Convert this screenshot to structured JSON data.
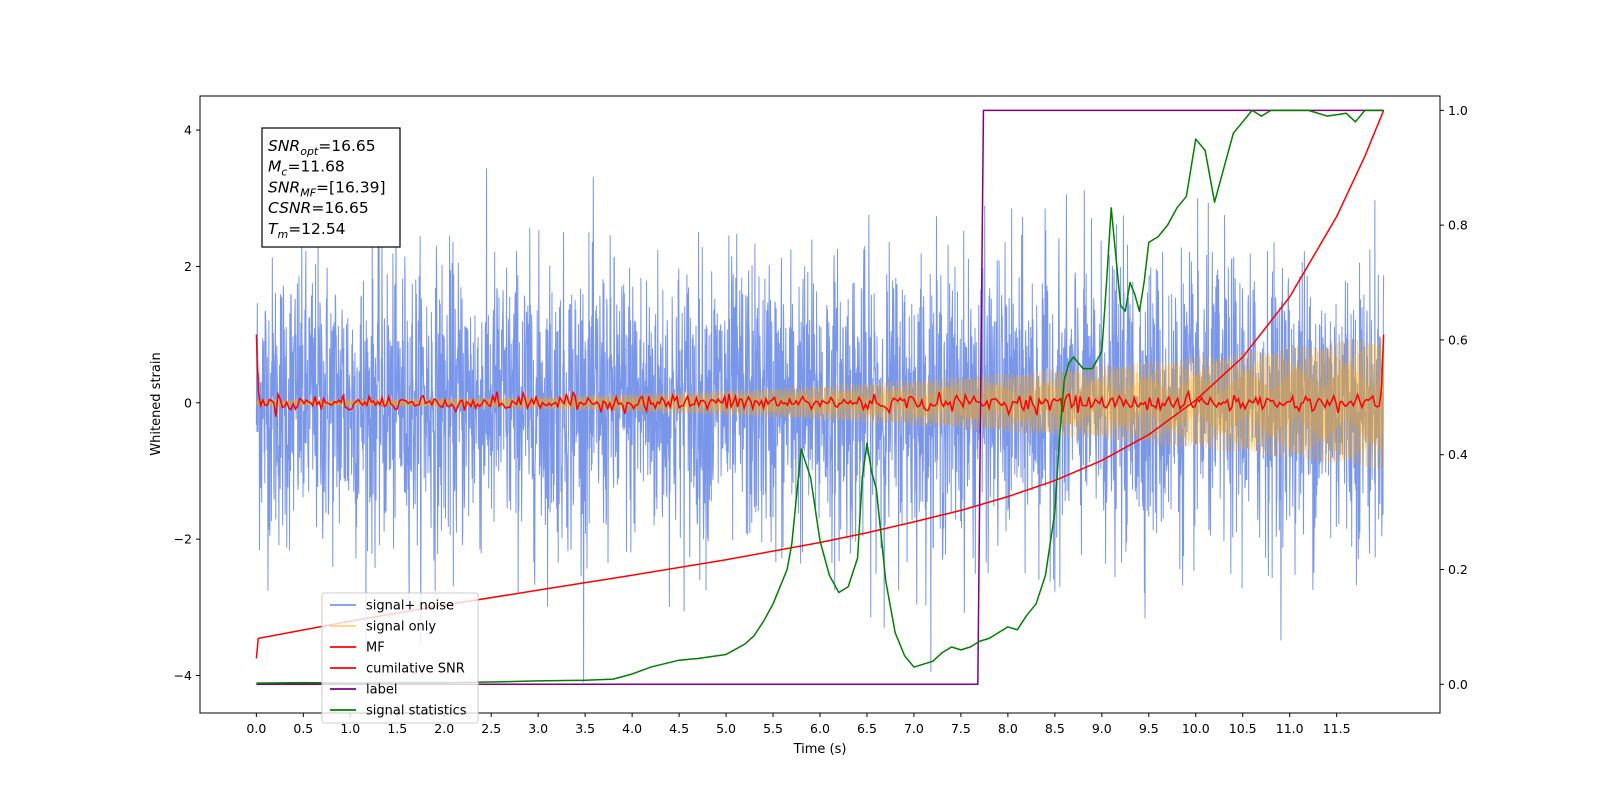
{
  "chart_data": {
    "type": "line",
    "xlabel": "Time (s)",
    "ylabel": "Whitened strain",
    "xlim": [
      -0.6,
      12.6
    ],
    "ylim_left": [
      -4.55,
      4.5
    ],
    "ylim_right": [
      -0.05,
      1.025
    ],
    "x_ticks": [
      0.0,
      0.5,
      1.0,
      1.5,
      2.0,
      2.5,
      3.0,
      3.5,
      4.0,
      4.5,
      5.0,
      5.5,
      6.0,
      6.5,
      7.0,
      7.5,
      8.0,
      8.5,
      9.0,
      9.5,
      10.0,
      10.5,
      11.0,
      11.5
    ],
    "x_tick_labels": [
      "0.0",
      "0.5",
      "1.0",
      "1.5",
      "2.0",
      "2.5",
      "3.0",
      "3.5",
      "4.0",
      "4.5",
      "5.0",
      "5.5",
      "6.0",
      "6.5",
      "7.0",
      "7.5",
      "8.0",
      "8.5",
      "9.0",
      "9.5",
      "10.0",
      "10.5",
      "11.0",
      "11.5"
    ],
    "y_left_ticks": [
      -4,
      -2,
      0,
      2,
      4
    ],
    "y_left_tick_labels": [
      "−4",
      "−2",
      "0",
      "2",
      "4"
    ],
    "y_right_ticks": [
      0.0,
      0.2,
      0.4,
      0.6,
      0.8,
      1.0
    ],
    "y_right_tick_labels": [
      "0.0",
      "0.2",
      "0.4",
      "0.6",
      "0.8",
      "1.0"
    ],
    "grid": false,
    "legend_position": "lower-left",
    "annotation": {
      "lines": [
        {
          "sym": "SNR",
          "sub": "opt",
          "rest": "=16.65"
        },
        {
          "sym": "M",
          "sub": "c",
          "rest": "=11.68"
        },
        {
          "sym": "SNR",
          "sub": "MF",
          "rest": "=[16.39]"
        },
        {
          "sym": "CSNR",
          "sub": "",
          "rest": "=16.65"
        },
        {
          "sym": "T",
          "sub": "m",
          "rest": "=12.54"
        }
      ]
    },
    "series": [
      {
        "name": "signal+ noise",
        "color": "#4169e1",
        "axis": "left",
        "kind": "noise",
        "t_range": [
          0.0,
          12.0
        ],
        "std": 1.05,
        "max_abs": 4.1
      },
      {
        "name": "signal only",
        "color": "#ffa500",
        "axis": "left",
        "kind": "chirp",
        "t_range": [
          0.0,
          12.0
        ],
        "start_amplitude": 0.05,
        "end_amplitude": 0.98
      },
      {
        "name": "MF",
        "color": "#ff0000",
        "axis": "left",
        "kind": "mf",
        "t_range": [
          0.0,
          12.0
        ],
        "start_value": 1.0,
        "end_value": 1.0,
        "baseline": 0.0,
        "fluctuation": 0.06
      },
      {
        "name": "cumilative SNR",
        "color": "#ff0000",
        "axis": "right",
        "x": [
          0.0,
          0.02,
          1.0,
          2.0,
          3.0,
          4.0,
          5.0,
          6.0,
          6.5,
          7.0,
          7.5,
          8.0,
          8.5,
          9.0,
          9.5,
          10.0,
          10.5,
          11.0,
          11.5,
          11.8,
          12.0
        ],
        "y": [
          0.045,
          0.08,
          0.11,
          0.138,
          0.164,
          0.19,
          0.217,
          0.247,
          0.264,
          0.283,
          0.303,
          0.327,
          0.355,
          0.39,
          0.435,
          0.495,
          0.57,
          0.675,
          0.815,
          0.92,
          1.0
        ]
      },
      {
        "name": "label",
        "color": "#800080",
        "axis": "right",
        "x": [
          0.0,
          7.68,
          7.74,
          12.0
        ],
        "y": [
          0.0,
          0.0,
          1.0,
          1.0
        ]
      },
      {
        "name": "signal statistics",
        "color": "#008000",
        "axis": "right",
        "x": [
          0.0,
          0.5,
          1.0,
          1.5,
          2.0,
          2.5,
          3.0,
          3.5,
          3.8,
          4.0,
          4.2,
          4.5,
          4.7,
          5.0,
          5.2,
          5.3,
          5.4,
          5.5,
          5.55,
          5.65,
          5.7,
          5.8,
          5.9,
          6.0,
          6.1,
          6.2,
          6.3,
          6.4,
          6.45,
          6.5,
          6.55,
          6.6,
          6.7,
          6.8,
          6.9,
          7.0,
          7.1,
          7.2,
          7.3,
          7.4,
          7.5,
          7.6,
          7.7,
          7.8,
          7.9,
          8.0,
          8.1,
          8.2,
          8.3,
          8.4,
          8.5,
          8.55,
          8.6,
          8.65,
          8.7,
          8.8,
          8.9,
          9.0,
          9.05,
          9.1,
          9.2,
          9.25,
          9.3,
          9.35,
          9.4,
          9.45,
          9.5,
          9.6,
          9.7,
          9.8,
          9.9,
          10.0,
          10.1,
          10.2,
          10.3,
          10.4,
          10.5,
          10.6,
          10.7,
          10.8,
          11.0,
          11.2,
          11.4,
          11.6,
          11.7,
          11.8,
          12.0
        ],
        "y": [
          0.002,
          0.003,
          0.002,
          0.003,
          0.003,
          0.004,
          0.006,
          0.007,
          0.009,
          0.018,
          0.03,
          0.042,
          0.045,
          0.052,
          0.07,
          0.085,
          0.11,
          0.14,
          0.16,
          0.2,
          0.245,
          0.41,
          0.36,
          0.25,
          0.19,
          0.16,
          0.17,
          0.22,
          0.36,
          0.42,
          0.37,
          0.34,
          0.18,
          0.09,
          0.05,
          0.03,
          0.035,
          0.04,
          0.055,
          0.065,
          0.06,
          0.065,
          0.075,
          0.08,
          0.09,
          0.1,
          0.095,
          0.12,
          0.14,
          0.19,
          0.3,
          0.43,
          0.53,
          0.56,
          0.57,
          0.55,
          0.55,
          0.58,
          0.7,
          0.83,
          0.66,
          0.65,
          0.7,
          0.68,
          0.65,
          0.7,
          0.77,
          0.78,
          0.8,
          0.83,
          0.85,
          0.95,
          0.93,
          0.84,
          0.9,
          0.96,
          0.98,
          1.0,
          0.99,
          1.0,
          1.0,
          1.0,
          0.99,
          0.995,
          0.98,
          1.0,
          1.0
        ]
      }
    ]
  }
}
